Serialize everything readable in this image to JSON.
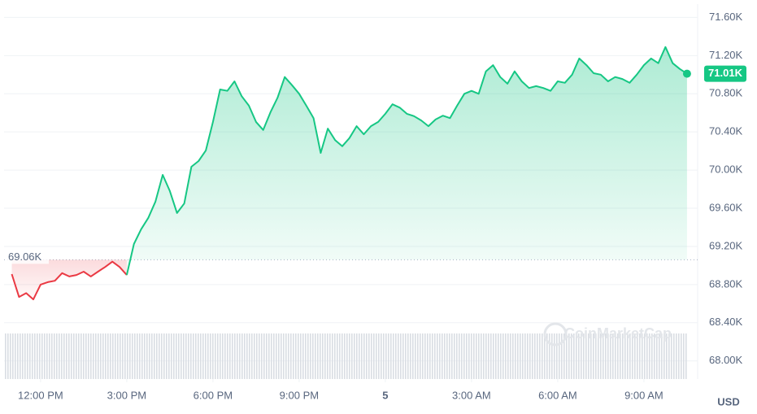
{
  "chart_data": {
    "type": "line",
    "x": [
      -1,
      -0.75,
      -0.5,
      -0.25,
      0,
      0.25,
      0.5,
      0.75,
      1,
      1.25,
      1.5,
      1.75,
      2,
      2.25,
      2.5,
      2.75,
      3,
      3.25,
      3.5,
      3.75,
      4,
      4.25,
      4.5,
      4.75,
      5,
      5.25,
      5.5,
      5.75,
      6,
      6.25,
      6.5,
      6.75,
      7,
      7.25,
      7.5,
      7.75,
      8,
      8.25,
      8.5,
      8.75,
      9,
      9.25,
      9.5,
      9.75,
      10,
      10.25,
      10.5,
      10.75,
      11,
      11.25,
      11.5,
      11.75,
      12,
      12.25,
      12.5,
      12.75,
      13,
      13.25,
      13.5,
      13.75,
      14,
      14.25,
      14.5,
      14.75,
      15,
      15.25,
      15.5,
      15.75,
      16,
      16.25,
      16.5,
      16.75,
      17,
      17.25,
      17.5,
      17.75,
      18,
      18.25,
      18.5,
      18.75,
      19,
      19.25,
      19.5,
      19.75,
      20,
      20.25,
      20.5,
      20.75,
      21,
      21.25,
      21.5,
      21.75,
      22,
      22.25,
      22.5
    ],
    "values": [
      68910,
      68670,
      68710,
      68645,
      68800,
      68825,
      68840,
      68920,
      68885,
      68900,
      68935,
      68885,
      68935,
      68985,
      69040,
      68985,
      68900,
      69225,
      69380,
      69500,
      69670,
      69950,
      69780,
      69550,
      69650,
      70035,
      70095,
      70205,
      70505,
      70845,
      70830,
      70930,
      70775,
      70675,
      70505,
      70420,
      70605,
      70760,
      70975,
      70890,
      70800,
      70675,
      70545,
      70180,
      70435,
      70315,
      70250,
      70335,
      70460,
      70375,
      70460,
      70505,
      70590,
      70690,
      70655,
      70590,
      70565,
      70520,
      70460,
      70530,
      70570,
      70545,
      70675,
      70800,
      70830,
      70800,
      71035,
      71100,
      70975,
      70905,
      71035,
      70930,
      70860,
      70880,
      70860,
      70830,
      70930,
      70915,
      71000,
      71170,
      71100,
      71015,
      71000,
      70930,
      70975,
      70955,
      70915,
      71000,
      71100,
      71170,
      71120,
      71290,
      71120,
      71060,
      71010
    ],
    "up_color": "#16c784",
    "down_color": "#ea3943",
    "reference_line": {
      "value": 69060,
      "label": "69.06K"
    },
    "last_label": "71.01K",
    "xlim": [
      -1.27,
      22.87
    ],
    "xticks": [
      {
        "value": 0,
        "label": "12:00 PM"
      },
      {
        "value": 3,
        "label": "3:00 PM"
      },
      {
        "value": 6,
        "label": "6:00 PM"
      },
      {
        "value": 9,
        "label": "9:00 PM"
      },
      {
        "value": 12,
        "label": "5"
      },
      {
        "value": 15,
        "label": "3:00 AM"
      },
      {
        "value": 18,
        "label": "6:00 AM"
      },
      {
        "value": 21,
        "label": "9:00 AM"
      }
    ],
    "ylim": [
      67810,
      71740
    ],
    "yticks": [
      {
        "value": 68000,
        "label": "68.00K"
      },
      {
        "value": 68400,
        "label": "68.40K"
      },
      {
        "value": 68800,
        "label": "68.80K"
      },
      {
        "value": 69200,
        "label": "69.20K"
      },
      {
        "value": 69600,
        "label": "69.60K"
      },
      {
        "value": 70000,
        "label": "70.00K"
      },
      {
        "value": 70400,
        "label": "70.40K"
      },
      {
        "value": 70800,
        "label": "70.80K"
      },
      {
        "value": 71200,
        "label": "71.20K"
      },
      {
        "value": 71600,
        "label": "71.60K"
      }
    ],
    "grid": true,
    "currency": "USD",
    "watermark": "CoinMarketCap"
  }
}
